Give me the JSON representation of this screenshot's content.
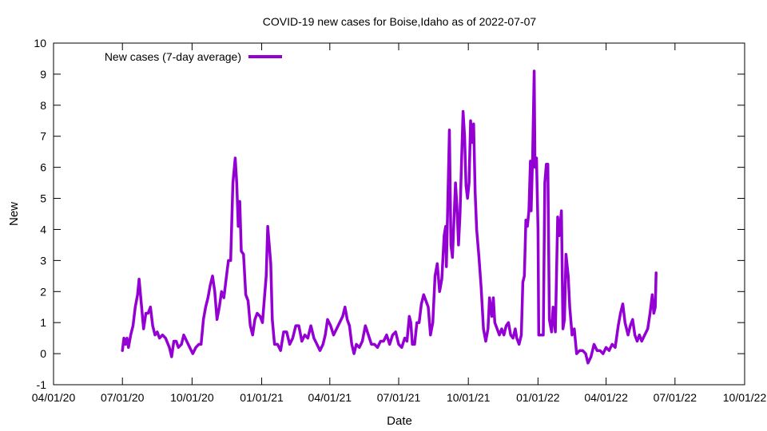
{
  "chart_data": {
    "type": "line",
    "title": "COVID-19 new cases for Boise,Idaho as of 2022-07-07",
    "xlabel": "Date",
    "ylabel": "New",
    "xlim": [
      "2020-04-01",
      "2022-10-01"
    ],
    "ylim": [
      -1,
      10
    ],
    "x_tick_labels": [
      "04/01/20",
      "07/01/20",
      "10/01/20",
      "01/01/21",
      "04/01/21",
      "07/01/21",
      "10/01/21",
      "01/01/22",
      "04/01/22",
      "07/01/22",
      "10/01/22"
    ],
    "y_tick_labels": [
      "-1",
      "0",
      "1",
      "2",
      "3",
      "4",
      "5",
      "6",
      "7",
      "8",
      "9",
      "10"
    ],
    "grid": false,
    "legend_position": "top-left",
    "series": [
      {
        "name": "New cases (7-day average)",
        "color": "#9400d3",
        "points": [
          [
            "2020-07-01",
            0.1
          ],
          [
            "2020-07-03",
            0.5
          ],
          [
            "2020-07-05",
            0.3
          ],
          [
            "2020-07-07",
            0.5
          ],
          [
            "2020-07-09",
            0.2
          ],
          [
            "2020-07-12",
            0.6
          ],
          [
            "2020-07-15",
            0.9
          ],
          [
            "2020-07-18",
            1.5
          ],
          [
            "2020-07-21",
            1.9
          ],
          [
            "2020-07-23",
            2.4
          ],
          [
            "2020-07-26",
            1.6
          ],
          [
            "2020-07-29",
            0.8
          ],
          [
            "2020-08-01",
            1.3
          ],
          [
            "2020-08-04",
            1.3
          ],
          [
            "2020-08-07",
            1.5
          ],
          [
            "2020-08-10",
            0.9
          ],
          [
            "2020-08-13",
            0.6
          ],
          [
            "2020-08-16",
            0.7
          ],
          [
            "2020-08-19",
            0.5
          ],
          [
            "2020-08-23",
            0.6
          ],
          [
            "2020-08-27",
            0.5
          ],
          [
            "2020-09-01",
            0.2
          ],
          [
            "2020-09-04",
            -0.1
          ],
          [
            "2020-09-07",
            0.4
          ],
          [
            "2020-09-10",
            0.4
          ],
          [
            "2020-09-13",
            0.2
          ],
          [
            "2020-09-17",
            0.3
          ],
          [
            "2020-09-20",
            0.6
          ],
          [
            "2020-09-24",
            0.4
          ],
          [
            "2020-09-28",
            0.2
          ],
          [
            "2020-10-02",
            0.0
          ],
          [
            "2020-10-06",
            0.2
          ],
          [
            "2020-10-10",
            0.3
          ],
          [
            "2020-10-13",
            0.3
          ],
          [
            "2020-10-16",
            1.1
          ],
          [
            "2020-10-19",
            1.5
          ],
          [
            "2020-10-22",
            1.8
          ],
          [
            "2020-10-25",
            2.2
          ],
          [
            "2020-10-28",
            2.5
          ],
          [
            "2020-10-31",
            2.0
          ],
          [
            "2020-11-03",
            1.1
          ],
          [
            "2020-11-06",
            1.5
          ],
          [
            "2020-11-09",
            2.0
          ],
          [
            "2020-11-12",
            1.8
          ],
          [
            "2020-11-15",
            2.4
          ],
          [
            "2020-11-18",
            3.0
          ],
          [
            "2020-11-21",
            3.0
          ],
          [
            "2020-11-24",
            5.5
          ],
          [
            "2020-11-27",
            6.3
          ],
          [
            "2020-11-29",
            5.5
          ],
          [
            "2020-12-01",
            4.1
          ],
          [
            "2020-12-03",
            4.9
          ],
          [
            "2020-12-05",
            3.3
          ],
          [
            "2020-12-08",
            3.2
          ],
          [
            "2020-12-11",
            1.9
          ],
          [
            "2020-12-14",
            1.7
          ],
          [
            "2020-12-17",
            0.9
          ],
          [
            "2020-12-20",
            0.6
          ],
          [
            "2020-12-23",
            1.1
          ],
          [
            "2020-12-26",
            1.3
          ],
          [
            "2020-12-30",
            1.2
          ],
          [
            "2021-01-02",
            1.0
          ],
          [
            "2021-01-05",
            1.9
          ],
          [
            "2021-01-07",
            2.5
          ],
          [
            "2021-01-09",
            4.1
          ],
          [
            "2021-01-11",
            3.5
          ],
          [
            "2021-01-13",
            2.9
          ],
          [
            "2021-01-15",
            1.1
          ],
          [
            "2021-01-18",
            0.3
          ],
          [
            "2021-01-22",
            0.3
          ],
          [
            "2021-01-26",
            0.1
          ],
          [
            "2021-01-30",
            0.7
          ],
          [
            "2021-02-03",
            0.7
          ],
          [
            "2021-02-07",
            0.3
          ],
          [
            "2021-02-11",
            0.5
          ],
          [
            "2021-02-15",
            0.9
          ],
          [
            "2021-02-19",
            0.9
          ],
          [
            "2021-02-23",
            0.4
          ],
          [
            "2021-02-27",
            0.6
          ],
          [
            "2021-03-03",
            0.5
          ],
          [
            "2021-03-07",
            0.9
          ],
          [
            "2021-03-11",
            0.5
          ],
          [
            "2021-03-15",
            0.3
          ],
          [
            "2021-03-19",
            0.1
          ],
          [
            "2021-03-23",
            0.3
          ],
          [
            "2021-03-26",
            0.6
          ],
          [
            "2021-03-29",
            1.1
          ],
          [
            "2021-04-02",
            0.9
          ],
          [
            "2021-04-06",
            0.6
          ],
          [
            "2021-04-10",
            0.8
          ],
          [
            "2021-04-14",
            1.0
          ],
          [
            "2021-04-18",
            1.2
          ],
          [
            "2021-04-21",
            1.5
          ],
          [
            "2021-04-24",
            1.1
          ],
          [
            "2021-04-27",
            0.9
          ],
          [
            "2021-04-30",
            0.3
          ],
          [
            "2021-05-03",
            0.0
          ],
          [
            "2021-05-06",
            0.3
          ],
          [
            "2021-05-10",
            0.2
          ],
          [
            "2021-05-14",
            0.4
          ],
          [
            "2021-05-18",
            0.9
          ],
          [
            "2021-05-22",
            0.6
          ],
          [
            "2021-05-26",
            0.3
          ],
          [
            "2021-05-30",
            0.3
          ],
          [
            "2021-06-03",
            0.2
          ],
          [
            "2021-06-07",
            0.4
          ],
          [
            "2021-06-11",
            0.4
          ],
          [
            "2021-06-15",
            0.6
          ],
          [
            "2021-06-19",
            0.3
          ],
          [
            "2021-06-23",
            0.6
          ],
          [
            "2021-06-27",
            0.7
          ],
          [
            "2021-07-01",
            0.3
          ],
          [
            "2021-07-05",
            0.2
          ],
          [
            "2021-07-09",
            0.5
          ],
          [
            "2021-07-12",
            0.4
          ],
          [
            "2021-07-15",
            1.2
          ],
          [
            "2021-07-17",
            1.0
          ],
          [
            "2021-07-19",
            0.3
          ],
          [
            "2021-07-22",
            0.3
          ],
          [
            "2021-07-25",
            1.0
          ],
          [
            "2021-07-28",
            1.0
          ],
          [
            "2021-07-31",
            1.6
          ],
          [
            "2021-08-03",
            1.9
          ],
          [
            "2021-08-06",
            1.7
          ],
          [
            "2021-08-09",
            1.5
          ],
          [
            "2021-08-12",
            0.6
          ],
          [
            "2021-08-15",
            1.0
          ],
          [
            "2021-08-18",
            2.5
          ],
          [
            "2021-08-21",
            2.9
          ],
          [
            "2021-08-24",
            2.0
          ],
          [
            "2021-08-27",
            2.4
          ],
          [
            "2021-08-30",
            3.8
          ],
          [
            "2021-09-01",
            4.1
          ],
          [
            "2021-09-02",
            2.8
          ],
          [
            "2021-09-04",
            5.0
          ],
          [
            "2021-09-06",
            7.2
          ],
          [
            "2021-09-08",
            3.5
          ],
          [
            "2021-09-10",
            3.1
          ],
          [
            "2021-09-12",
            4.3
          ],
          [
            "2021-09-14",
            5.5
          ],
          [
            "2021-09-16",
            4.7
          ],
          [
            "2021-09-18",
            3.5
          ],
          [
            "2021-09-20",
            4.5
          ],
          [
            "2021-09-22",
            6.2
          ],
          [
            "2021-09-24",
            7.8
          ],
          [
            "2021-09-26",
            7.0
          ],
          [
            "2021-09-28",
            5.4
          ],
          [
            "2021-09-30",
            5.0
          ],
          [
            "2021-10-02",
            5.5
          ],
          [
            "2021-10-04",
            7.5
          ],
          [
            "2021-10-06",
            6.8
          ],
          [
            "2021-10-08",
            7.4
          ],
          [
            "2021-10-10",
            5.2
          ],
          [
            "2021-10-12",
            4.0
          ],
          [
            "2021-10-15",
            3.1
          ],
          [
            "2021-10-18",
            2.1
          ],
          [
            "2021-10-21",
            0.8
          ],
          [
            "2021-10-24",
            0.4
          ],
          [
            "2021-10-27",
            0.8
          ],
          [
            "2021-10-29",
            1.8
          ],
          [
            "2021-11-01",
            1.2
          ],
          [
            "2021-11-03",
            1.8
          ],
          [
            "2021-11-05",
            1.0
          ],
          [
            "2021-11-08",
            0.8
          ],
          [
            "2021-11-11",
            0.6
          ],
          [
            "2021-11-14",
            0.8
          ],
          [
            "2021-11-17",
            0.6
          ],
          [
            "2021-11-20",
            0.9
          ],
          [
            "2021-11-23",
            1.0
          ],
          [
            "2021-11-26",
            0.6
          ],
          [
            "2021-11-29",
            0.5
          ],
          [
            "2021-12-02",
            0.8
          ],
          [
            "2021-12-04",
            0.5
          ],
          [
            "2021-12-07",
            0.3
          ],
          [
            "2021-12-10",
            0.6
          ],
          [
            "2021-12-12",
            2.3
          ],
          [
            "2021-12-14",
            2.5
          ],
          [
            "2021-12-16",
            4.3
          ],
          [
            "2021-12-18",
            4.1
          ],
          [
            "2021-12-20",
            4.6
          ],
          [
            "2021-12-22",
            6.2
          ],
          [
            "2021-12-23",
            4.6
          ],
          [
            "2021-12-25",
            6.4
          ],
          [
            "2021-12-27",
            9.1
          ],
          [
            "2021-12-28",
            6.0
          ],
          [
            "2021-12-30",
            6.3
          ],
          [
            "2022-01-01",
            4.0
          ],
          [
            "2022-01-02",
            0.6
          ],
          [
            "2022-01-05",
            0.6
          ],
          [
            "2022-01-08",
            0.6
          ],
          [
            "2022-01-10",
            5.5
          ],
          [
            "2022-01-12",
            6.1
          ],
          [
            "2022-01-14",
            6.1
          ],
          [
            "2022-01-16",
            1.1
          ],
          [
            "2022-01-19",
            0.7
          ],
          [
            "2022-01-21",
            1.5
          ],
          [
            "2022-01-24",
            0.7
          ],
          [
            "2022-01-27",
            4.4
          ],
          [
            "2022-01-29",
            3.8
          ],
          [
            "2022-02-01",
            4.6
          ],
          [
            "2022-02-03",
            0.8
          ],
          [
            "2022-02-05",
            1.1
          ],
          [
            "2022-02-07",
            3.2
          ],
          [
            "2022-02-10",
            2.5
          ],
          [
            "2022-02-12",
            1.5
          ],
          [
            "2022-02-15",
            0.6
          ],
          [
            "2022-02-18",
            0.8
          ],
          [
            "2022-02-21",
            0.0
          ],
          [
            "2022-02-25",
            0.1
          ],
          [
            "2022-03-01",
            0.1
          ],
          [
            "2022-03-05",
            0.0
          ],
          [
            "2022-03-08",
            -0.3
          ],
          [
            "2022-03-12",
            -0.1
          ],
          [
            "2022-03-16",
            0.3
          ],
          [
            "2022-03-20",
            0.1
          ],
          [
            "2022-03-24",
            0.1
          ],
          [
            "2022-03-28",
            0.0
          ],
          [
            "2022-04-01",
            0.2
          ],
          [
            "2022-04-05",
            0.1
          ],
          [
            "2022-04-09",
            0.3
          ],
          [
            "2022-04-13",
            0.2
          ],
          [
            "2022-04-17",
            0.9
          ],
          [
            "2022-04-20",
            1.3
          ],
          [
            "2022-04-23",
            1.6
          ],
          [
            "2022-04-26",
            1.0
          ],
          [
            "2022-04-30",
            0.6
          ],
          [
            "2022-05-03",
            0.9
          ],
          [
            "2022-05-06",
            1.1
          ],
          [
            "2022-05-09",
            0.6
          ],
          [
            "2022-05-12",
            0.4
          ],
          [
            "2022-05-15",
            0.6
          ],
          [
            "2022-05-18",
            0.4
          ],
          [
            "2022-05-22",
            0.6
          ],
          [
            "2022-05-26",
            0.8
          ],
          [
            "2022-05-29",
            1.3
          ],
          [
            "2022-06-01",
            1.9
          ],
          [
            "2022-06-03",
            1.3
          ],
          [
            "2022-06-05",
            1.5
          ],
          [
            "2022-06-06",
            2.6
          ]
        ]
      }
    ]
  }
}
